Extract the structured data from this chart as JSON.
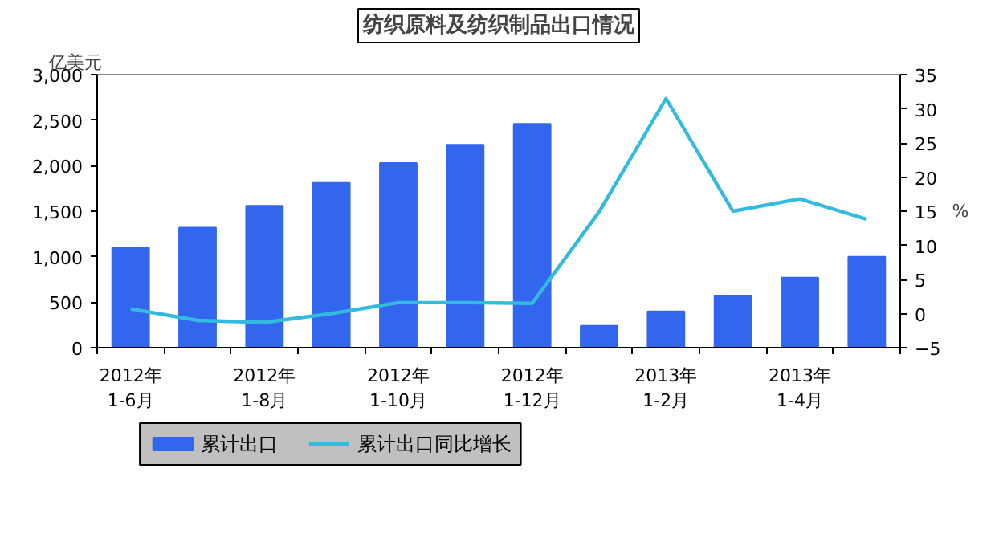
{
  "chart_data": {
    "type": "bar",
    "title": "纺织原料及纺织制品出口情况",
    "ylabel": "亿美元",
    "y2label": "%",
    "categories": [
      "2012年\n1-6月",
      null,
      "2012年\n1-8月",
      null,
      "2012年\n1-10月",
      null,
      "2012年\n1-12月",
      null,
      "2013年\n1-2月",
      null,
      "2013年\n1-4月",
      null
    ],
    "series": [
      {
        "name": "累计出口",
        "color": "#3366ee",
        "values": [
          1100,
          1320,
          1560,
          1810,
          2030,
          2230,
          2460,
          240,
          400,
          570,
          770,
          1000
        ]
      },
      {
        "name": "累计出口同比增长",
        "type": "line",
        "axis": "y2",
        "color": "#33bbdd",
        "values": [
          0.7,
          -1.0,
          -1.3,
          0.0,
          1.6,
          1.6,
          1.5,
          14.9,
          31.5,
          15.0,
          16.8,
          13.8
        ]
      }
    ],
    "ylim": [
      0,
      3000
    ],
    "yticks": [
      0,
      500,
      {
        "value": 1000,
        "label": "1,000"
      },
      {
        "value": 1500,
        "label": "1,500"
      },
      {
        "value": 2000,
        "label": "2,000"
      },
      {
        "value": 2500,
        "label": "2,500"
      },
      {
        "value": 3000,
        "label": "3,000"
      }
    ],
    "y2lim": [
      -5,
      35
    ],
    "y2ticks": [
      -5,
      0,
      5,
      10,
      15,
      20,
      25,
      30,
      35
    ],
    "grid": false,
    "legend": "bottom"
  }
}
